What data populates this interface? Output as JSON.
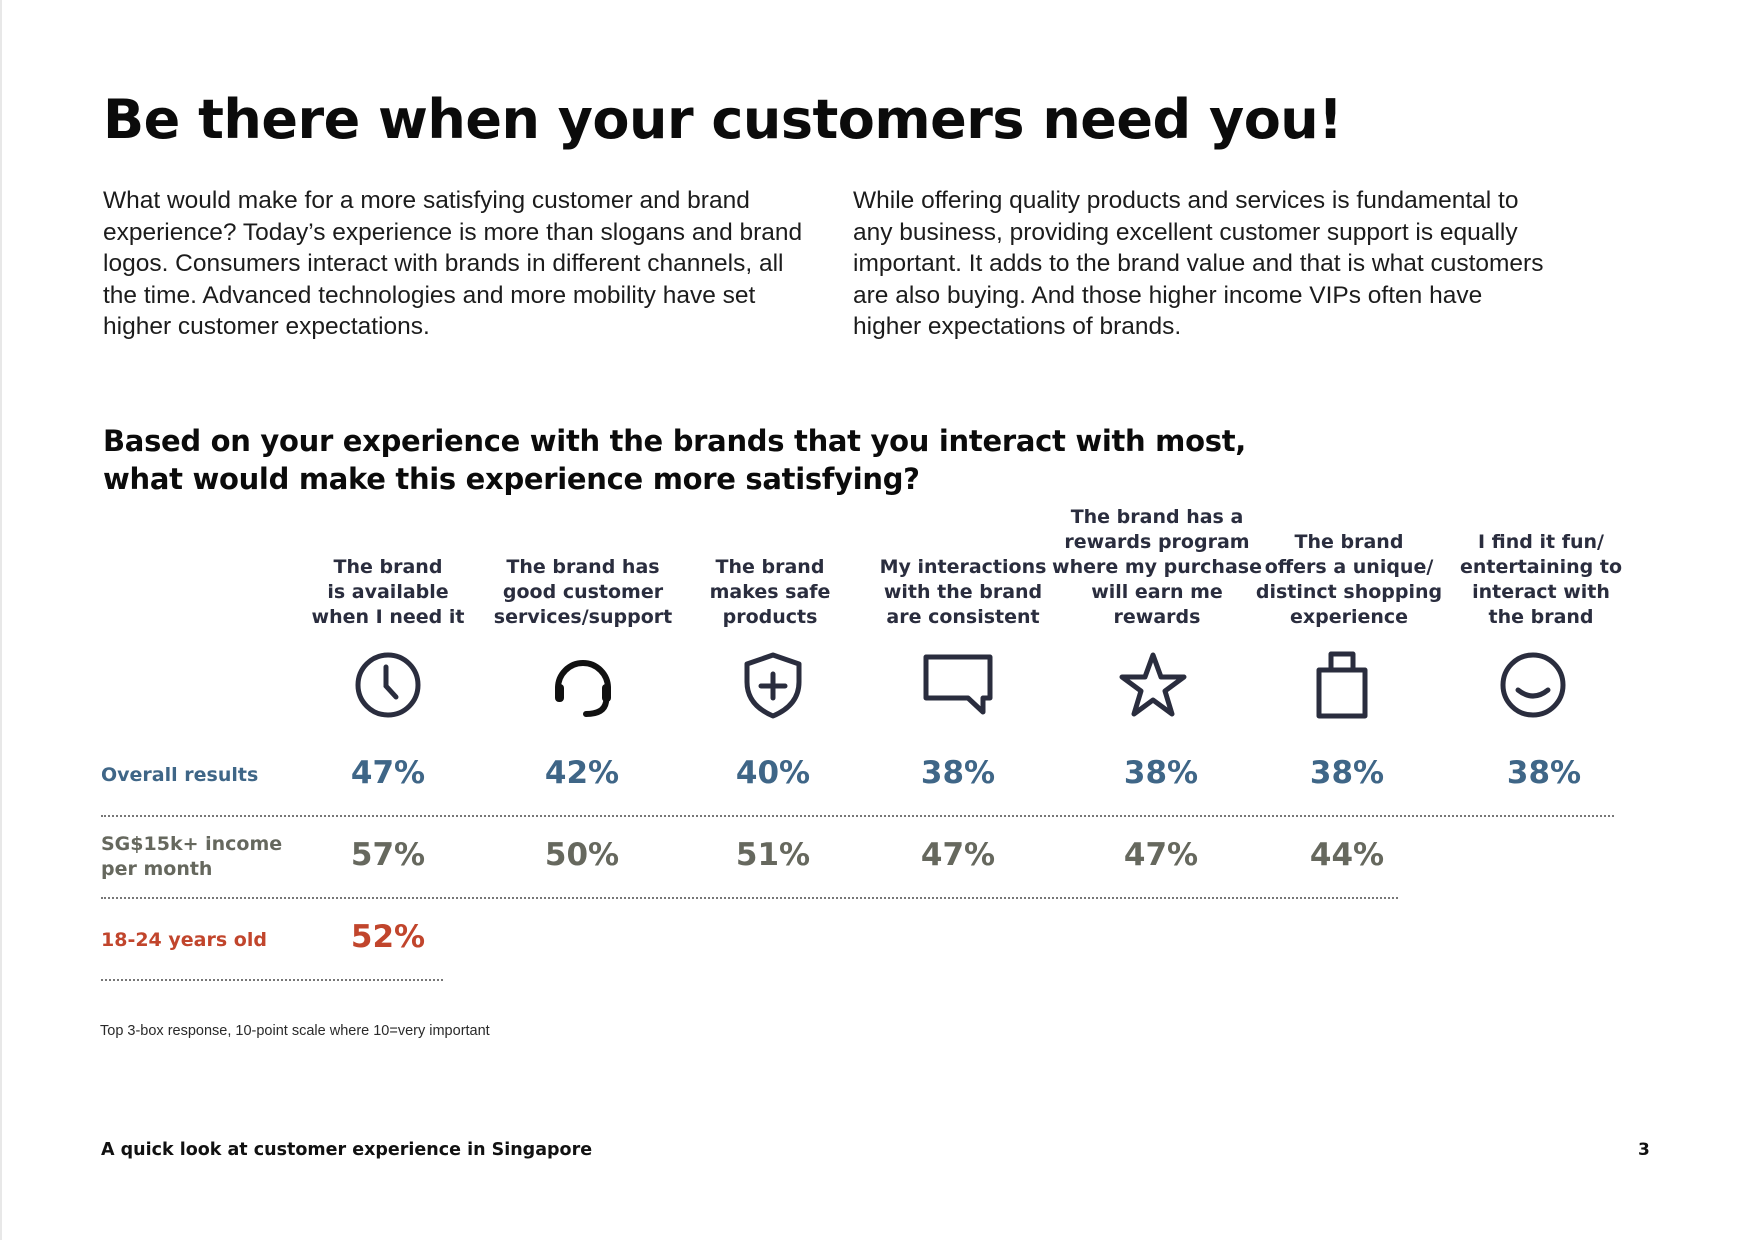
{
  "title": "Be there when your customers need you!",
  "intro": {
    "left": "What would make for a more satisfying customer and brand experience? Today’s experience is more than slogans and brand logos. Consumers interact with brands in different channels, all the time. Advanced technologies and more mobility have set higher customer expectations.",
    "right": "While offering quality products and services is fundamental to any business, providing excellent customer support is equally important. It adds to the brand value and that is what customers are also buying. And those higher income VIPs often have higher expectations of brands."
  },
  "question": {
    "line1": "Based on your experience with the brands that you interact with most,",
    "line2": "what would make this experience more satisfying?"
  },
  "columns": [
    {
      "lines": [
        "The brand",
        "is available",
        "when I need it"
      ],
      "icon": "clock-icon"
    },
    {
      "lines": [
        "The brand has",
        "good customer",
        "services/support"
      ],
      "icon": "headset-icon"
    },
    {
      "lines": [
        "The brand",
        "makes safe",
        "products"
      ],
      "icon": "shield-plus-icon"
    },
    {
      "lines": [
        "My interactions",
        "with the brand",
        "are consistent"
      ],
      "icon": "chat-bubble-icon"
    },
    {
      "lines": [
        "The brand has a",
        "rewards program",
        "where my purchase",
        "will earn me rewards"
      ],
      "icon": "star-icon"
    },
    {
      "lines": [
        "The brand",
        "offers a unique/",
        "distinct shopping",
        "experience"
      ],
      "icon": "shopping-bag-icon"
    },
    {
      "lines": [
        "I find it fun/",
        "entertaining to",
        "interact with",
        "the brand"
      ],
      "icon": "smiley-icon"
    }
  ],
  "rows": {
    "overall": {
      "label": "Overall results",
      "values": [
        "47%",
        "42%",
        "40%",
        "38%",
        "38%",
        "38%",
        "38%"
      ]
    },
    "income": {
      "label_line1": "SG$15k+ income",
      "label_line2": "per month",
      "values": [
        "57%",
        "50%",
        "51%",
        "47%",
        "47%",
        "44%"
      ]
    },
    "young": {
      "label": "18-24 years old",
      "values": [
        "52%"
      ]
    }
  },
  "chart_data": {
    "type": "table",
    "title": "Based on your experience with the brands that you interact with most, what would make this experience more satisfying?",
    "categories": [
      "The brand is available when I need it",
      "The brand has good customer services/support",
      "The brand makes safe products",
      "My interactions with the brand are consistent",
      "The brand has a rewards program where my purchase will earn me rewards",
      "The brand offers a unique/distinct shopping experience",
      "I find it fun/entertaining to interact with the brand"
    ],
    "series": [
      {
        "name": "Overall results",
        "values": [
          47,
          42,
          40,
          38,
          38,
          38,
          38
        ]
      },
      {
        "name": "SG$15k+ income per month",
        "values": [
          57,
          50,
          51,
          47,
          47,
          44,
          null
        ]
      },
      {
        "name": "18-24 years old",
        "values": [
          52,
          null,
          null,
          null,
          null,
          null,
          null
        ]
      }
    ],
    "unit": "%"
  },
  "colors": {
    "overall": "#3f6687",
    "income": "#66685e",
    "young": "#c1452c",
    "icon": "#2a2d3e"
  },
  "note": "Top 3-box response, 10-point scale where 10=very important",
  "footer": "A quick look at customer experience in Singapore",
  "page_number": "3"
}
